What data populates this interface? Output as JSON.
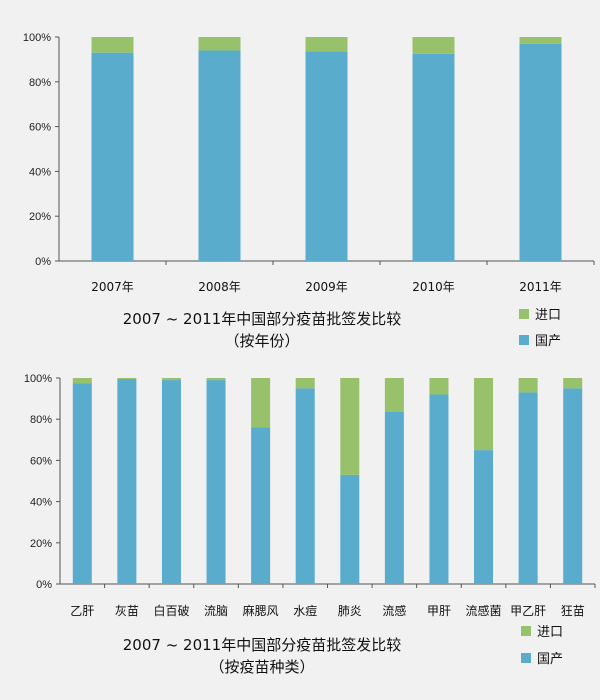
{
  "colors": {
    "domestic": "#5aaccd",
    "imported": "#97c16a",
    "axis": "#555555",
    "background": "#f1f1f1"
  },
  "chart_data": [
    {
      "type": "bar",
      "stacked": true,
      "percent": true,
      "title": "2007 ~ 2011年中国部分疫苗批签发比较",
      "subtitle": "（按年份）",
      "categories": [
        "2007年",
        "2008年",
        "2009年",
        "2010年",
        "2011年"
      ],
      "series": [
        {
          "name": "国产",
          "values": [
            93,
            94,
            93.5,
            92.5,
            97
          ]
        },
        {
          "name": "进口",
          "values": [
            7,
            6,
            6.5,
            7.5,
            3
          ]
        }
      ],
      "ylim": [
        0,
        100
      ],
      "yticks": [
        "0%",
        "20%",
        "40%",
        "60%",
        "80%",
        "100%"
      ],
      "legend": [
        "进口",
        "国产"
      ],
      "legend_position": "right"
    },
    {
      "type": "bar",
      "stacked": true,
      "percent": true,
      "title": "2007 ~ 2011年中国部分疫苗批签发比较",
      "subtitle": "（按疫苗种类）",
      "categories": [
        "乙肝",
        "灰苗",
        "白百破",
        "流脑",
        "麻腮风",
        "水痘",
        "肺炎",
        "流感",
        "甲肝",
        "流感菌",
        "甲乙肝",
        "狂苗"
      ],
      "series": [
        {
          "name": "国产",
          "values": [
            97.5,
            99.5,
            99,
            99,
            76,
            95,
            53,
            83.5,
            92,
            65,
            93,
            95
          ]
        },
        {
          "name": "进口",
          "values": [
            2.5,
            0.5,
            1,
            1,
            24,
            5,
            47,
            16.5,
            8,
            35,
            7,
            5
          ]
        }
      ],
      "ylim": [
        0,
        100
      ],
      "yticks": [
        "0%",
        "20%",
        "40%",
        "60%",
        "80%",
        "100%"
      ],
      "legend": [
        "进口",
        "国产"
      ],
      "legend_position": "right"
    }
  ]
}
